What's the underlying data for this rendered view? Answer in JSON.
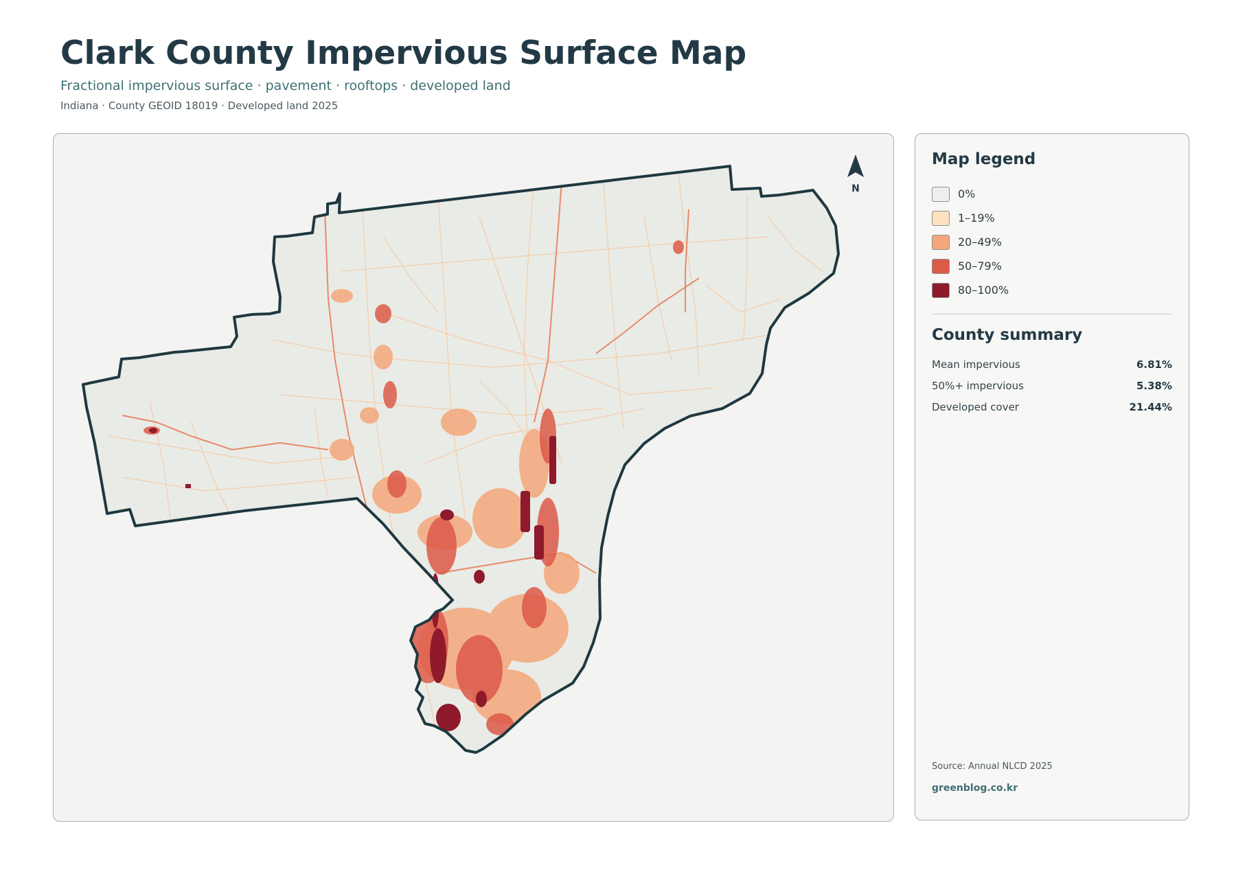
{
  "header": {
    "title": "Clark County Impervious Surface Map",
    "subtitle": "Fractional impervious surface · pavement · rooftops · developed land",
    "meta": "Indiana · County GEOID 18019 · Developed land 2025"
  },
  "map": {
    "north_label": "N",
    "colors": {
      "outline": "#1f3840",
      "land": "#e9ebe6",
      "panel": "#f3f3f1"
    }
  },
  "legend": {
    "heading": "Map legend",
    "items": [
      {
        "label": "0%",
        "color": "#eeeeec"
      },
      {
        "label": "1–19%",
        "color": "#fde0bf"
      },
      {
        "label": "20–49%",
        "color": "#f4a77a"
      },
      {
        "label": "50–79%",
        "color": "#dc5a48"
      },
      {
        "label": "80–100%",
        "color": "#8e1a2c"
      }
    ]
  },
  "summary": {
    "heading": "County summary",
    "rows": [
      {
        "label": "Mean impervious",
        "value": "6.81%"
      },
      {
        "label": "50%+ impervious",
        "value": "5.38%"
      },
      {
        "label": "Developed cover",
        "value": "21.44%"
      }
    ]
  },
  "footer": {
    "source": "Source: Annual NLCD 2025",
    "credit": "greenblog.co.kr"
  }
}
